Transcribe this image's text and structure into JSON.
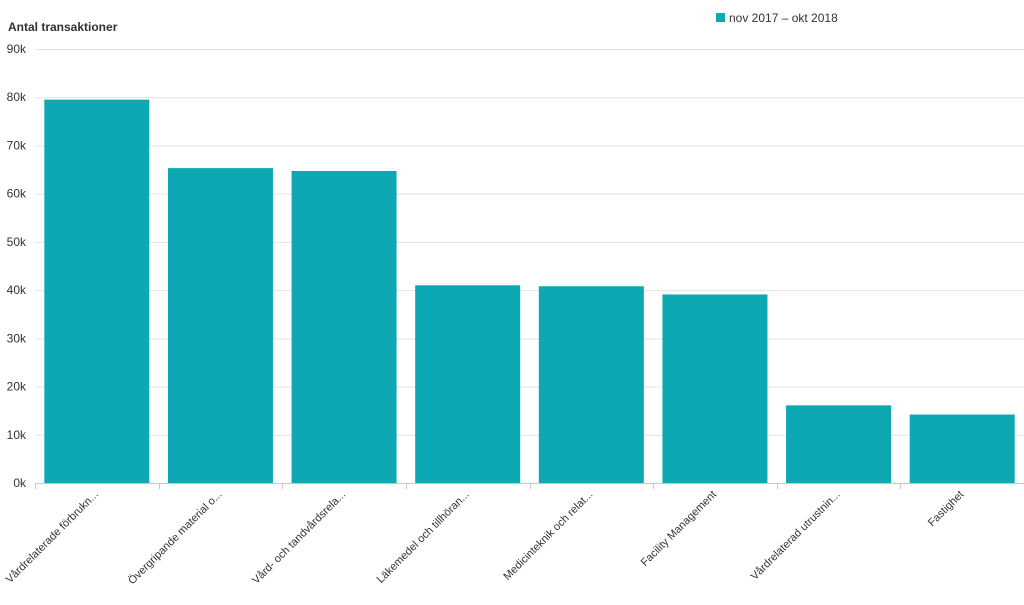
{
  "chart_data": {
    "type": "bar",
    "ylabel": "Antal transaktioner",
    "xlabel": "",
    "ylim": [
      0,
      90000
    ],
    "ytick_step": 10000,
    "ytick_labels": [
      "0k",
      "10k",
      "20k",
      "30k",
      "40k",
      "50k",
      "60k",
      "70k",
      "80k",
      "90k"
    ],
    "grid": true,
    "legend_position": "top-right",
    "categories": [
      "Vårdrelaterade förbrukn...",
      "Övergripande material o...",
      "Vård- och tandvårdsrela...",
      "Läkemedel och tillhöran...",
      "Medicinteknik och relat...",
      "Facility Management",
      "Vårdrelaterad utrustnin...",
      "Fastighet"
    ],
    "series": [
      {
        "name": "nov 2017 – okt 2018",
        "color": "#0ea8b5",
        "values": [
          79500,
          65300,
          64700,
          41000,
          40800,
          39100,
          16100,
          14200
        ]
      }
    ]
  }
}
